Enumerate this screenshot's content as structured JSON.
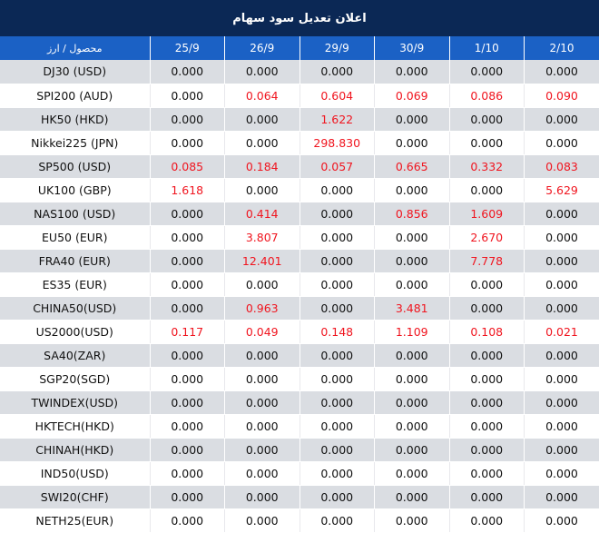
{
  "title": "اعلان تعديل سود سهام",
  "header": {
    "first_col": "محصول / ارز",
    "dates": [
      "25/9",
      "26/9",
      "29/9",
      "30/9",
      "1/10",
      "2/10"
    ]
  },
  "colors": {
    "title_bg": "#0b2855",
    "header_bg": "#1b61c5",
    "positive": "#f0151f",
    "zero": "#111111",
    "row_alt": "#dadde2"
  },
  "rows": [
    {
      "symbol": "DJ30 (USD)",
      "values": [
        "0.000",
        "0.000",
        "0.000",
        "0.000",
        "0.000",
        "0.000"
      ]
    },
    {
      "symbol": "SPI200 (AUD)",
      "values": [
        "0.000",
        "0.064",
        "0.604",
        "0.069",
        "0.086",
        "0.090"
      ]
    },
    {
      "symbol": "HK50 (HKD)",
      "values": [
        "0.000",
        "0.000",
        "1.622",
        "0.000",
        "0.000",
        "0.000"
      ]
    },
    {
      "symbol": "Nikkei225 (JPN)",
      "values": [
        "0.000",
        "0.000",
        "298.830",
        "0.000",
        "0.000",
        "0.000"
      ]
    },
    {
      "symbol": "SP500 (USD)",
      "values": [
        "0.085",
        "0.184",
        "0.057",
        "0.665",
        "0.332",
        "0.083"
      ]
    },
    {
      "symbol": "UK100 (GBP)",
      "values": [
        "1.618",
        "0.000",
        "0.000",
        "0.000",
        "0.000",
        "5.629"
      ]
    },
    {
      "symbol": "NAS100 (USD)",
      "values": [
        "0.000",
        "0.414",
        "0.000",
        "0.856",
        "1.609",
        "0.000"
      ]
    },
    {
      "symbol": "EU50 (EUR)",
      "values": [
        "0.000",
        "3.807",
        "0.000",
        "0.000",
        "2.670",
        "0.000"
      ]
    },
    {
      "symbol": "FRA40 (EUR)",
      "values": [
        "0.000",
        "12.401",
        "0.000",
        "0.000",
        "7.778",
        "0.000"
      ]
    },
    {
      "symbol": "ES35 (EUR)",
      "values": [
        "0.000",
        "0.000",
        "0.000",
        "0.000",
        "0.000",
        "0.000"
      ]
    },
    {
      "symbol": "CHINA50(USD)",
      "values": [
        "0.000",
        "0.963",
        "0.000",
        "3.481",
        "0.000",
        "0.000"
      ]
    },
    {
      "symbol": "US2000(USD)",
      "values": [
        "0.117",
        "0.049",
        "0.148",
        "1.109",
        "0.108",
        "0.021"
      ]
    },
    {
      "symbol": "SA40(ZAR)",
      "values": [
        "0.000",
        "0.000",
        "0.000",
        "0.000",
        "0.000",
        "0.000"
      ]
    },
    {
      "symbol": "SGP20(SGD)",
      "values": [
        "0.000",
        "0.000",
        "0.000",
        "0.000",
        "0.000",
        "0.000"
      ]
    },
    {
      "symbol": "TWINDEX(USD)",
      "values": [
        "0.000",
        "0.000",
        "0.000",
        "0.000",
        "0.000",
        "0.000"
      ]
    },
    {
      "symbol": "HKTECH(HKD)",
      "values": [
        "0.000",
        "0.000",
        "0.000",
        "0.000",
        "0.000",
        "0.000"
      ]
    },
    {
      "symbol": "CHINAH(HKD)",
      "values": [
        "0.000",
        "0.000",
        "0.000",
        "0.000",
        "0.000",
        "0.000"
      ]
    },
    {
      "symbol": "IND50(USD)",
      "values": [
        "0.000",
        "0.000",
        "0.000",
        "0.000",
        "0.000",
        "0.000"
      ]
    },
    {
      "symbol": "SWI20(CHF)",
      "values": [
        "0.000",
        "0.000",
        "0.000",
        "0.000",
        "0.000",
        "0.000"
      ]
    },
    {
      "symbol": "NETH25(EUR)",
      "values": [
        "0.000",
        "0.000",
        "0.000",
        "0.000",
        "0.000",
        "0.000"
      ]
    }
  ]
}
